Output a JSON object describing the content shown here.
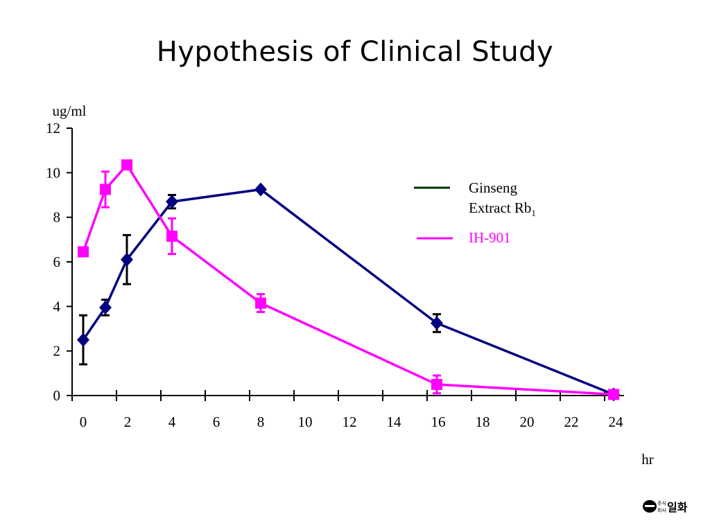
{
  "title": "Hypothesis of Clinical Study",
  "logo_text": "(주)일화",
  "chart_data": {
    "type": "line",
    "title": "Hypothesis of Clinical Study",
    "ylabel": "ug/ml",
    "xlabel": "hr",
    "ylim": [
      0,
      12
    ],
    "xlim": [
      0,
      24
    ],
    "x_ticks": [
      0,
      2,
      4,
      6,
      8,
      10,
      12,
      14,
      16,
      18,
      20,
      22,
      24
    ],
    "x_tick_labels": [
      "0",
      "2",
      "4",
      "6",
      "8",
      "10",
      "12",
      "14",
      "16",
      "18",
      "20",
      "22",
      "24"
    ],
    "y_ticks": [
      0,
      2,
      4,
      6,
      8,
      10,
      12
    ],
    "y_tick_labels": [
      "0",
      "2",
      "4",
      "6",
      "8",
      "10",
      "12"
    ],
    "grid": false,
    "legend_placement": "right",
    "series": [
      {
        "name": "Ginseng Extract Rb1",
        "legend_line1": "Ginseng",
        "legend_line2": "Extract Rb",
        "legend_sub": "1",
        "legend_color": "#003300",
        "color": "#000080",
        "marker": "diamond",
        "errorbar_color": "#000000",
        "x": [
          0,
          1,
          2,
          4,
          8,
          16,
          24
        ],
        "y": [
          2.5,
          3.95,
          6.1,
          8.7,
          9.25,
          3.25,
          0.05
        ],
        "err": [
          1.1,
          0.35,
          1.1,
          0.3,
          0.0,
          0.4,
          0.0
        ]
      },
      {
        "name": "IH-901",
        "legend_line1": "IH-901",
        "legend_color": "#ff00ff",
        "color": "#ff00ff",
        "marker": "square",
        "errorbar_color": "#ff00ff",
        "x": [
          0,
          1,
          2,
          4,
          8,
          16,
          24
        ],
        "y": [
          6.45,
          9.25,
          10.35,
          7.15,
          4.15,
          0.5,
          0.05
        ],
        "err": [
          0.2,
          0.8,
          0.0,
          0.8,
          0.4,
          0.4,
          0.0
        ]
      }
    ]
  }
}
